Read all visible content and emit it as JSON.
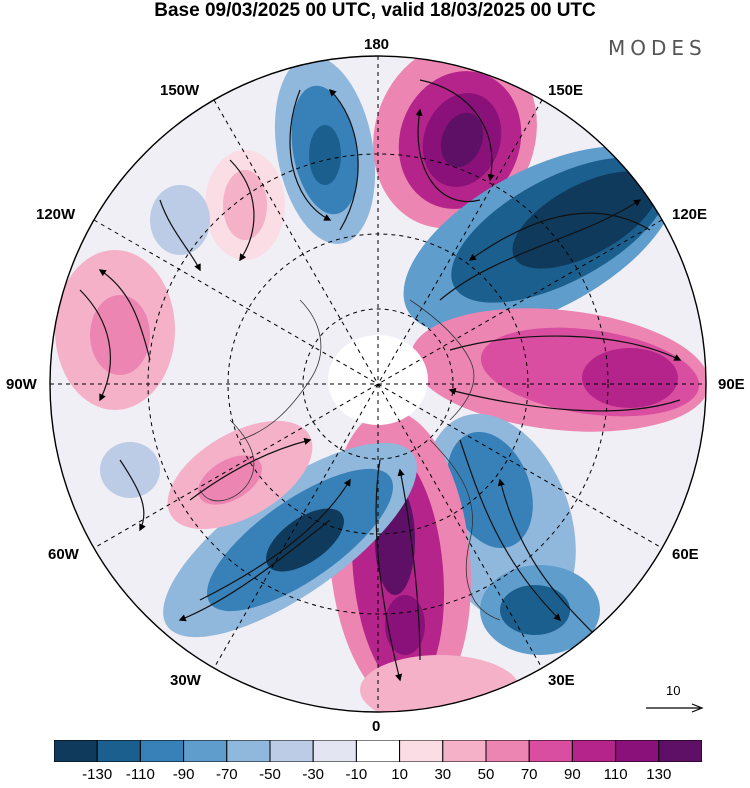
{
  "header": {
    "title": "Base 09/03/2025 00 UTC, valid 18/03/2025 00 UTC",
    "brand": "MODES"
  },
  "map": {
    "projection": "north-polar-stereographic",
    "longitude_labels": {
      "lon_180": "180",
      "lon_150E": "150E",
      "lon_120E": "120E",
      "lon_90E": "90E",
      "lon_60E": "60E",
      "lon_30E": "30E",
      "lon_0": "0",
      "lon_30W": "30W",
      "lon_60W": "60W",
      "lon_90W": "90W",
      "lon_120W": "120W",
      "lon_150W": "150W"
    },
    "reference_vector": {
      "label": "10"
    }
  },
  "colorbar": {
    "colors": [
      "#0f3a5c",
      "#1b5f8e",
      "#3880b8",
      "#5f9dcc",
      "#90b7dc",
      "#bccbe6",
      "#e4e5f2",
      "#ffffff",
      "#fbdde5",
      "#f4b1c8",
      "#ec85b2",
      "#d94ea0",
      "#b5248a",
      "#8a1179",
      "#5e1066"
    ],
    "tick_labels": [
      "-130",
      "-110",
      "-90",
      "-70",
      "-50",
      "-30",
      "-10",
      "10",
      "30",
      "50",
      "70",
      "90",
      "110",
      "130"
    ]
  }
}
